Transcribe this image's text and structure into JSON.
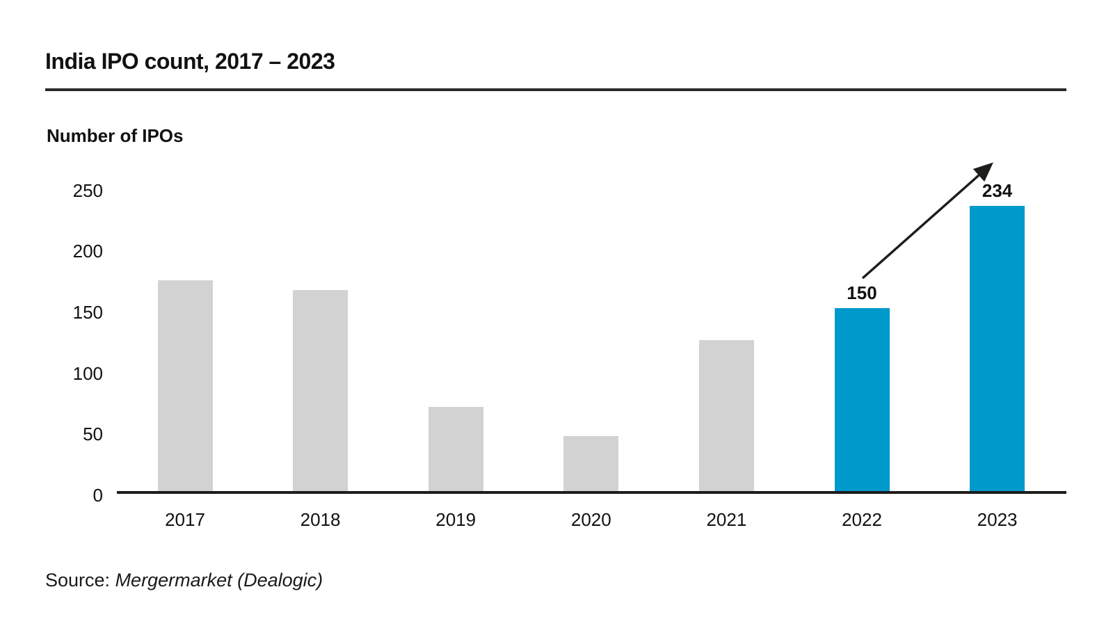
{
  "chart_data": {
    "type": "bar",
    "title": "India IPO count, 2017 – 2023",
    "ylabel": "Number of IPOs",
    "xlabel": "",
    "categories": [
      "2017",
      "2018",
      "2019",
      "2020",
      "2021",
      "2022",
      "2023"
    ],
    "values": [
      173,
      165,
      69,
      45,
      124,
      150,
      234
    ],
    "value_labels": [
      null,
      null,
      null,
      null,
      null,
      "150",
      "234"
    ],
    "highlighted": [
      false,
      false,
      false,
      false,
      false,
      true,
      true
    ],
    "yticks": [
      0,
      50,
      100,
      150,
      200,
      250
    ],
    "ylim": [
      0,
      250
    ],
    "grid": false,
    "legend": false,
    "colors": {
      "bar_default": "#d2d2d2",
      "bar_highlight": "#0099cb",
      "axis": "#1d1d1b",
      "text": "#111111"
    },
    "annotations": [
      {
        "type": "arrow",
        "from_label": "150",
        "to_label": "234"
      }
    ],
    "source_prefix": "Source:",
    "source": "Mergermarket (Dealogic)"
  }
}
